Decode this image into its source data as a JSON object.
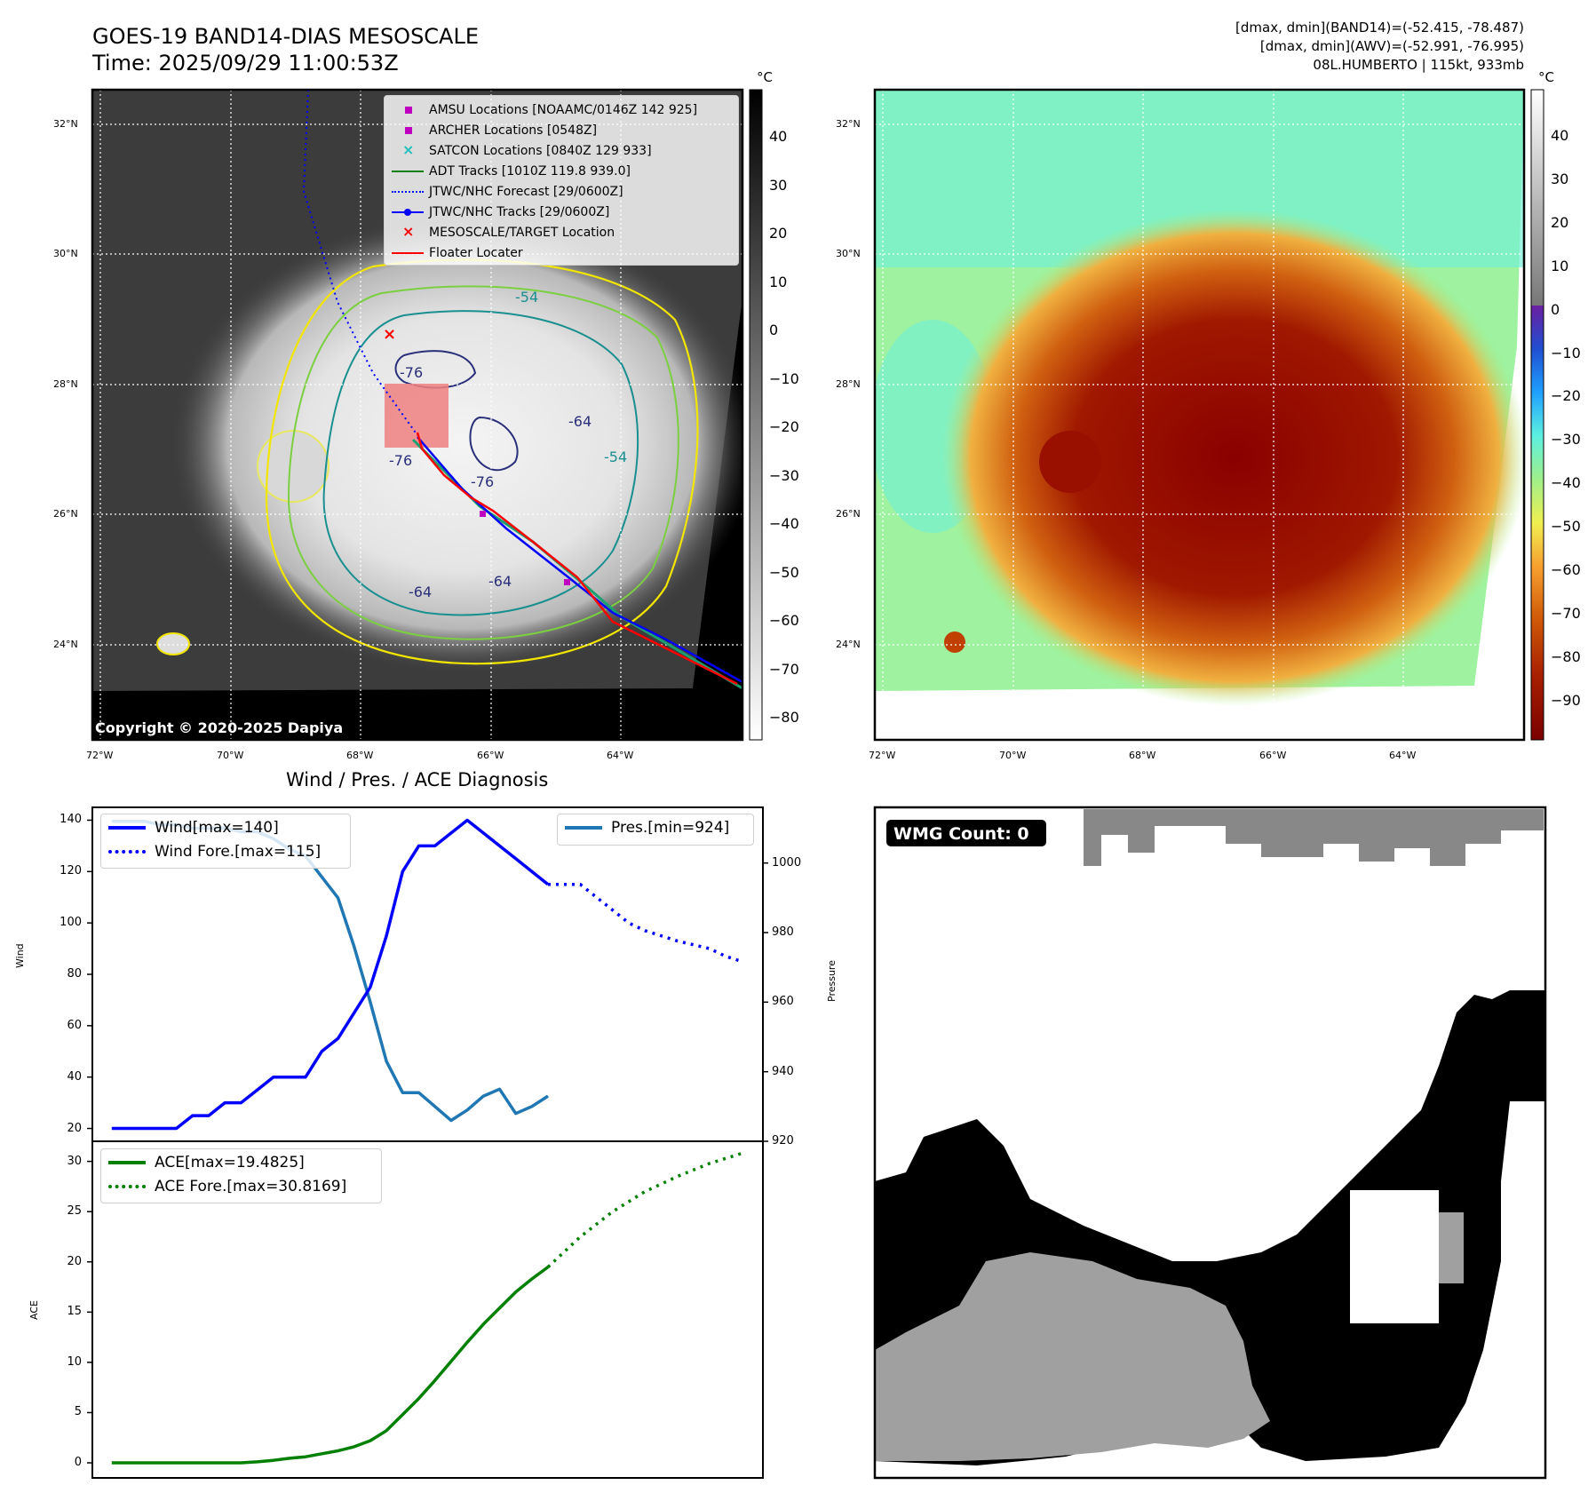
{
  "header": {
    "title_line1": "GOES-19 BAND14-DIAS MESOSCALE",
    "title_line2": "Time: 2025/09/29 11:00:53Z",
    "info_line1": "[dmax, dmin](BAND14)=(-52.415, -78.487)",
    "info_line2": "[dmax, dmin](AWV)=(-52.991, -76.995)",
    "info_line3": "08L.HUMBERTO | 115kt, 933mb"
  },
  "map": {
    "lat_labels": [
      "32°N",
      "30°N",
      "28°N",
      "26°N",
      "24°N"
    ],
    "lon_labels": [
      "72°W",
      "70°W",
      "68°W",
      "66°W",
      "64°W"
    ],
    "copyright": "Copyright © 2020-2025 Dapiya",
    "contour_labels": [
      "-76",
      "-76",
      "-76",
      "-64",
      "-64",
      "-64",
      "-54",
      "-54"
    ],
    "legend": [
      {
        "label": "AMSU Locations [NOAAMC/0146Z 142 925]",
        "color": "#c000c0",
        "symbol": "square"
      },
      {
        "label": "ARCHER Locations [0548Z]",
        "color": "#c000c0",
        "symbol": "square"
      },
      {
        "label": "SATCON Locations [0840Z 129 933]",
        "color": "#20c0c0",
        "symbol": "x"
      },
      {
        "label": "ADT Tracks [1010Z 119.8 939.0]",
        "color": "#008000",
        "symbol": "line"
      },
      {
        "label": "JTWC/NHC Forecast [29/0600Z]",
        "color": "#0000ff",
        "symbol": "dotted"
      },
      {
        "label": "JTWC/NHC Tracks [29/0600Z]",
        "color": "#0000ff",
        "symbol": "line-dot"
      },
      {
        "label": "MESOSCALE/TARGET Location",
        "color": "#ff0000",
        "symbol": "x"
      },
      {
        "label": "Floater Locater",
        "color": "#ff0000",
        "symbol": "line"
      }
    ]
  },
  "colorbar_gray": {
    "unit": "°C",
    "ticks": [
      "40",
      "30",
      "20",
      "10",
      "0",
      "−10",
      "−20",
      "−30",
      "−40",
      "−50",
      "−60",
      "−70",
      "−80"
    ]
  },
  "colorbar_color": {
    "unit": "°C",
    "ticks": [
      "40",
      "30",
      "20",
      "10",
      "0",
      "−10",
      "−20",
      "−30",
      "−40",
      "−50",
      "−60",
      "−70",
      "−80",
      "−90"
    ]
  },
  "wmg": {
    "badge": "WMG Count: 0"
  },
  "chart_data": [
    {
      "type": "line",
      "title": "Wind / Pres. / ACE Diagnosis",
      "ylabel": "Wind",
      "y2label": "Pressure",
      "ylim": [
        15,
        145
      ],
      "y2lim": [
        920,
        1016
      ],
      "yticks": [
        "20",
        "40",
        "60",
        "80",
        "100",
        "120",
        "140"
      ],
      "y2ticks": [
        "920",
        "940",
        "960",
        "980",
        "1000"
      ],
      "series": [
        {
          "name": "Wind[max=140]",
          "axis": "left",
          "color": "#0000ff",
          "style": "solid",
          "x": [
            0,
            1,
            2,
            3,
            4,
            5,
            6,
            7,
            8,
            9,
            10,
            11,
            12,
            13,
            14,
            15,
            16,
            17,
            18,
            19,
            20,
            21,
            22,
            23,
            24,
            25,
            26,
            27
          ],
          "values": [
            20,
            20,
            20,
            20,
            20,
            25,
            25,
            30,
            30,
            35,
            40,
            40,
            40,
            50,
            55,
            65,
            75,
            95,
            120,
            130,
            130,
            135,
            140,
            135,
            130,
            125,
            120,
            115
          ]
        },
        {
          "name": "Wind Fore.[max=115]",
          "axis": "left",
          "color": "#0000ff",
          "style": "dotted",
          "x": [
            27,
            29,
            30,
            31,
            32,
            33,
            35,
            37,
            38,
            39
          ],
          "values": [
            115,
            115,
            110,
            105,
            100,
            97,
            93,
            90,
            87,
            85
          ]
        },
        {
          "name": "Pres.[min=924]",
          "axis": "right",
          "color": "#1f77b4",
          "style": "solid",
          "x": [
            0,
            1,
            2,
            3,
            4,
            5,
            6,
            7,
            8,
            9,
            10,
            11,
            12,
            13,
            14,
            15,
            16,
            17,
            18,
            19,
            20,
            21,
            22,
            23,
            24,
            25,
            26,
            27
          ],
          "values": [
            1012,
            1012,
            1012,
            1011,
            1011,
            1010,
            1010,
            1010,
            1009,
            1009,
            1007,
            1004,
            1002,
            996,
            990,
            976,
            960,
            943,
            934,
            934,
            930,
            926,
            929,
            933,
            935,
            928,
            930,
            933
          ]
        }
      ]
    },
    {
      "type": "line",
      "ylabel": "ACE",
      "ylim": [
        -1.5,
        32
      ],
      "yticks": [
        "0",
        "5",
        "10",
        "15",
        "20",
        "25",
        "30"
      ],
      "series": [
        {
          "name": "ACE[max=19.4825]",
          "color": "#008000",
          "style": "solid",
          "x": [
            0,
            8,
            9,
            10,
            11,
            12,
            13,
            14,
            15,
            16,
            17,
            18,
            19,
            20,
            21,
            22,
            23,
            24,
            25,
            26,
            27
          ],
          "values": [
            0,
            0,
            0.1,
            0.25,
            0.45,
            0.6,
            0.9,
            1.2,
            1.6,
            2.2,
            3.2,
            4.8,
            6.4,
            8.2,
            10.1,
            12.0,
            13.8,
            15.4,
            17.0,
            18.3,
            19.48
          ]
        },
        {
          "name": "ACE Fore.[max=30.8169]",
          "color": "#008000",
          "style": "dotted",
          "x": [
            27,
            29,
            31,
            33,
            35,
            37,
            39
          ],
          "values": [
            19.48,
            22.5,
            25.0,
            27.0,
            28.5,
            29.8,
            30.8
          ]
        }
      ]
    }
  ]
}
